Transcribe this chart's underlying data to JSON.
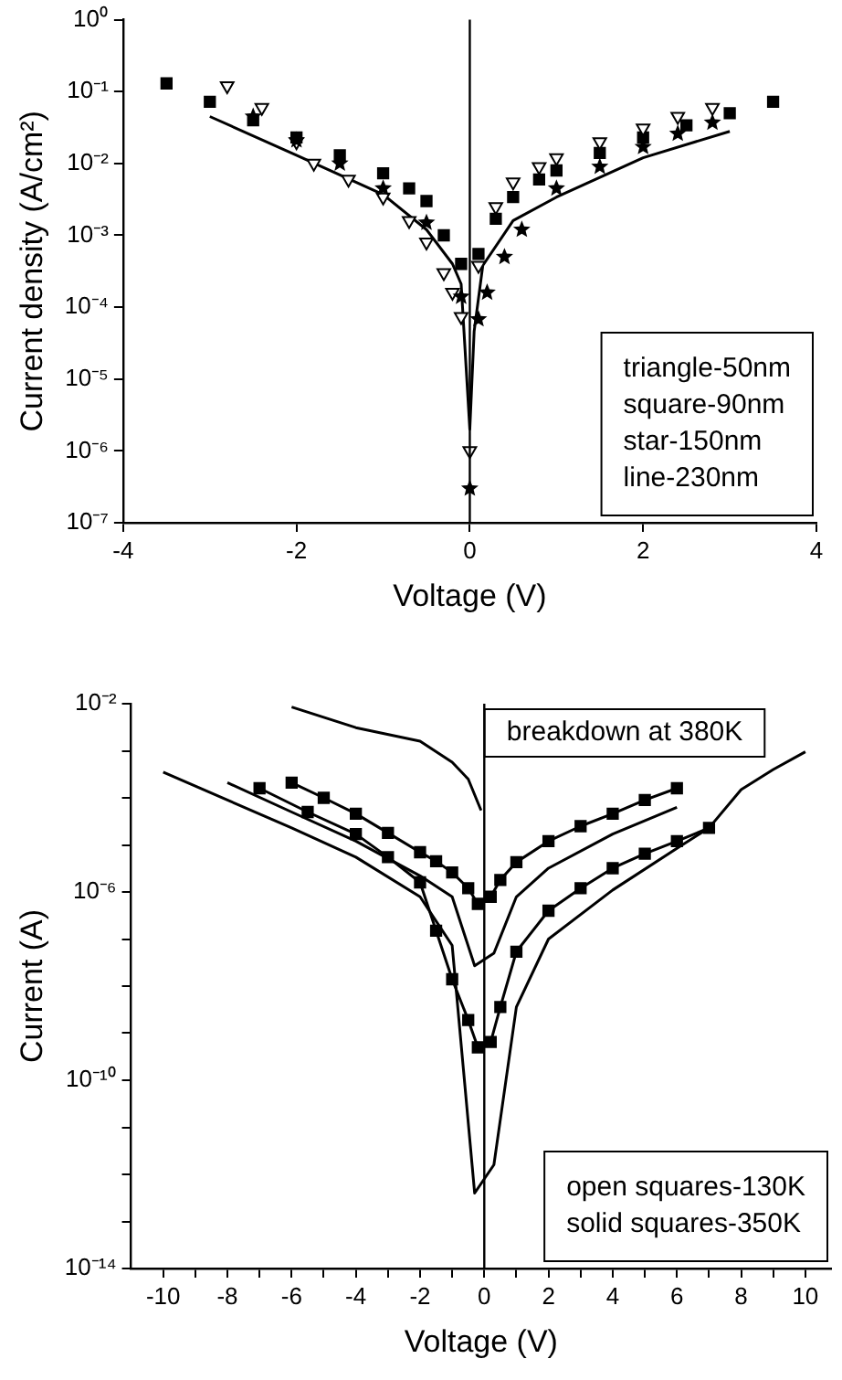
{
  "chart_data": [
    {
      "type": "scatter",
      "xlabel": "Voltage (V)",
      "ylabel": "Current density (A/cm²)",
      "log": "y",
      "grid": false,
      "legend": false,
      "xlim": [
        -4,
        4
      ],
      "xticks": [
        -4,
        -2,
        0,
        2,
        4
      ],
      "ylim": [
        1e-07,
        1
      ],
      "yticks": [
        {
          "value": 1,
          "label": "10⁰"
        },
        {
          "value": 0.1,
          "label": "10⁻¹"
        },
        {
          "value": 0.01,
          "label": "10⁻²"
        },
        {
          "value": 0.001,
          "label": "10⁻³"
        },
        {
          "value": 0.0001,
          "label": "10⁻⁴"
        },
        {
          "value": 1e-05,
          "label": "10⁻⁵"
        },
        {
          "value": 1e-06,
          "label": "10⁻⁶"
        },
        {
          "value": 1e-07,
          "label": "10⁻⁷"
        }
      ],
      "ref_lines": [
        {
          "axis": "x",
          "value": 0
        }
      ],
      "annotations": [
        "triangle-50nm",
        "square-90nm",
        "star-150nm",
        "line-230nm"
      ],
      "series": [
        {
          "marker": "triangle",
          "color": "#000000",
          "x": [
            -2.8,
            -2.4,
            -2,
            -1.8,
            -1.4,
            -1,
            -0.7,
            -0.5,
            -0.3,
            -0.2,
            -0.1,
            0,
            0.1,
            0.3,
            0.5,
            0.8,
            1,
            1.5,
            2,
            2.4,
            2.8
          ],
          "values": [
            0.12,
            0.06,
            0.02,
            0.01,
            0.006,
            0.0034,
            0.0016,
            0.0008,
            0.0003,
            0.00016,
            7.4e-05,
            1e-06,
            0.00038,
            0.0025,
            0.0055,
            0.009,
            0.012,
            0.02,
            0.031,
            0.045,
            0.06
          ]
        },
        {
          "marker": "square",
          "color": "#000000",
          "x": [
            -3.5,
            -3,
            -2.5,
            -2,
            -1.5,
            -1,
            -0.7,
            -0.5,
            -0.3,
            -0.1,
            0.1,
            0.3,
            0.5,
            0.8,
            1,
            1.5,
            2,
            2.5,
            3,
            3.5
          ],
          "values": [
            0.13,
            0.072,
            0.04,
            0.023,
            0.013,
            0.0073,
            0.0045,
            0.003,
            0.001,
            0.0004,
            0.00055,
            0.0017,
            0.0034,
            0.006,
            0.008,
            0.014,
            0.023,
            0.034,
            0.05,
            0.072
          ]
        },
        {
          "marker": "star",
          "color": "#000000",
          "x": [
            -2.5,
            -2,
            -1.5,
            -1,
            -0.5,
            -0.1,
            0,
            0.1,
            0.2,
            0.4,
            0.6,
            1,
            1.5,
            2,
            2.4,
            2.8
          ],
          "values": [
            0.045,
            0.021,
            0.01,
            0.0045,
            0.0015,
            0.00014,
            3e-07,
            6.8e-05,
            0.00016,
            0.0005,
            0.0012,
            0.0045,
            0.009,
            0.017,
            0.026,
            0.037
          ]
        },
        {
          "type": "line",
          "marker": "none",
          "color": "#000000",
          "x": [
            -3,
            -2,
            -1,
            -0.5,
            -0.2,
            -0.1,
            0,
            0.05,
            0.15,
            0.5,
            1,
            2,
            3
          ],
          "values": [
            0.045,
            0.013,
            0.0037,
            0.0012,
            0.0004,
            0.00021,
            2e-06,
            4.6e-05,
            0.00038,
            0.0016,
            0.0034,
            0.012,
            0.028
          ]
        }
      ]
    },
    {
      "type": "line",
      "xlabel": "Voltage (V)",
      "ylabel": "Current (A)",
      "log": "y",
      "grid": false,
      "legend": false,
      "xlim": [
        -11,
        10.8
      ],
      "xticks": [
        -10,
        {
          "value": -9,
          "label": null
        },
        -8,
        {
          "value": -7,
          "label": null
        },
        -6,
        {
          "value": -5,
          "label": null
        },
        -4,
        {
          "value": -3,
          "label": null
        },
        -2,
        {
          "value": -1,
          "label": null
        },
        0,
        {
          "value": 1,
          "label": null
        },
        2,
        {
          "value": 3,
          "label": null
        },
        4,
        {
          "value": 5,
          "label": null
        },
        6,
        {
          "value": 7,
          "label": null
        },
        8,
        {
          "value": 9,
          "label": null
        },
        10
      ],
      "ylim": [
        1e-14,
        0.01
      ],
      "yticks": [
        {
          "value": 0.01,
          "label": "10⁻²"
        },
        {
          "value": 0.001,
          "label": null
        },
        {
          "value": 0.0001,
          "label": null
        },
        {
          "value": 1e-05,
          "label": null
        },
        {
          "value": 1e-06,
          "label": "10⁻⁶"
        },
        {
          "value": 1e-07,
          "label": null
        },
        {
          "value": 1e-08,
          "label": null
        },
        {
          "value": 1e-09,
          "label": null
        },
        {
          "value": 1e-10,
          "label": "10⁻¹⁰"
        },
        {
          "value": 1e-11,
          "label": null
        },
        {
          "value": 1e-12,
          "label": null
        },
        {
          "value": 1e-13,
          "label": null
        },
        {
          "value": 1e-14,
          "label": "10⁻¹⁴"
        }
      ],
      "ref_lines": [
        {
          "axis": "x",
          "value": 0
        }
      ],
      "annotations": [
        "breakdown at 380K",
        "open squares-130K",
        "solid squares-350K"
      ],
      "series": [
        {
          "marker": "none",
          "color": "#000000",
          "x": [
            -6,
            -4,
            -2,
            -1,
            -0.5,
            -0.1
          ],
          "values": [
            0.0085,
            0.0031,
            0.0016,
            0.00057,
            0.00025,
            5.4e-05
          ]
        },
        {
          "marker": "square",
          "color": "#000000",
          "x": [
            -6,
            -5,
            -4,
            -3,
            -2,
            -1.5,
            -1,
            -0.5,
            -0.2,
            0.2,
            0.5,
            1,
            2,
            3,
            4,
            5,
            6
          ],
          "values": [
            0.00021,
            0.0001,
            4.6e-05,
            1.8e-05,
            7e-06,
            4.5e-06,
            2.6e-06,
            1.2e-06,
            5.6e-07,
            7.9e-07,
            1.8e-06,
            4.3e-06,
            1.2e-05,
            2.5e-05,
            4.6e-05,
            9e-05,
            0.00016
          ]
        },
        {
          "marker": "square",
          "color": "#000000",
          "x": [
            -7,
            -5.5,
            -4,
            -3,
            -2,
            -1.5,
            -1,
            -0.5,
            -0.2,
            0.2,
            0.5,
            1,
            2,
            3,
            4,
            5,
            6,
            7
          ],
          "values": [
            0.00016,
            5e-05,
            1.7e-05,
            5.5e-06,
            1.6e-06,
            1.5e-07,
            1.4e-08,
            1.9e-09,
            5e-10,
            6.5e-10,
            3.6e-09,
            5.4e-08,
            4e-07,
            1.2e-06,
            3.2e-06,
            6.5e-06,
            1.2e-05,
            2.3e-05
          ]
        },
        {
          "marker": "none",
          "color": "#000000",
          "x": [
            -8,
            -6,
            -4,
            -2,
            -1,
            -0.3,
            0.3,
            1,
            2,
            4,
            6
          ],
          "values": [
            0.00021,
            5e-05,
            1.2e-05,
            2.2e-06,
            7.9e-07,
            2.7e-08,
            5e-08,
            7.9e-07,
            3.2e-06,
            1.7e-05,
            6.3e-05
          ]
        },
        {
          "marker": "none",
          "color": "#000000",
          "x": [
            -10,
            -8,
            -6,
            -4,
            -2,
            -1,
            -0.3,
            0.3,
            1,
            2,
            4,
            6,
            7,
            8,
            9,
            10
          ],
          "values": [
            0.00035,
            9e-05,
            2.3e-05,
            5.5e-06,
            7.9e-07,
            7.3e-08,
            4e-13,
            1.6e-12,
            3.6e-09,
            1e-07,
            1.1e-06,
            8.5e-06,
            2.3e-05,
            0.00015,
            0.0004,
            0.00095
          ]
        }
      ]
    }
  ]
}
